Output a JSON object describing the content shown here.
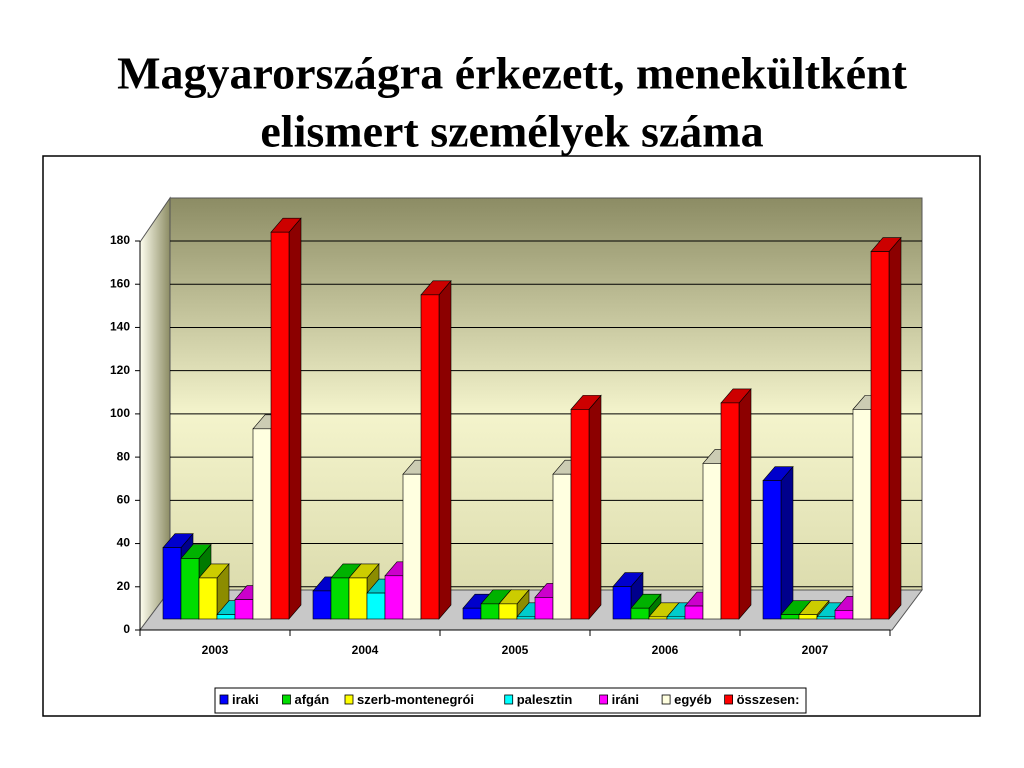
{
  "chart_data": {
    "type": "bar3d",
    "title": [
      "Magyarországra érkezett, menekültként",
      "elismert személyek száma"
    ],
    "categories": [
      "2003",
      "2004",
      "2005",
      "2006",
      "2007"
    ],
    "series": [
      {
        "name": "iraki",
        "color": "#0000ff",
        "values": [
          33,
          13,
          5,
          15,
          64
        ]
      },
      {
        "name": "afgán",
        "color": "#00dd00",
        "values": [
          28,
          19,
          7,
          5,
          2
        ]
      },
      {
        "name": "szerb-montenegrói",
        "color": "#ffff00",
        "values": [
          19,
          19,
          7,
          1,
          2
        ]
      },
      {
        "name": "palesztin",
        "color": "#00ffff",
        "values": [
          2,
          12,
          1,
          1,
          1
        ]
      },
      {
        "name": "iráni",
        "color": "#ff00ff",
        "values": [
          9,
          20,
          10,
          6,
          4
        ]
      },
      {
        "name": "egyéb",
        "color": "#ffffe0",
        "values": [
          88,
          67,
          67,
          72,
          97
        ]
      },
      {
        "name": "összesen:",
        "color": "#ff0000",
        "values": [
          179,
          150,
          97,
          100,
          170
        ]
      }
    ],
    "ylim": [
      0,
      180
    ],
    "yticks": [
      0,
      20,
      40,
      60,
      80,
      100,
      120,
      140,
      160,
      180
    ],
    "grid": true,
    "legend": "bottom"
  }
}
